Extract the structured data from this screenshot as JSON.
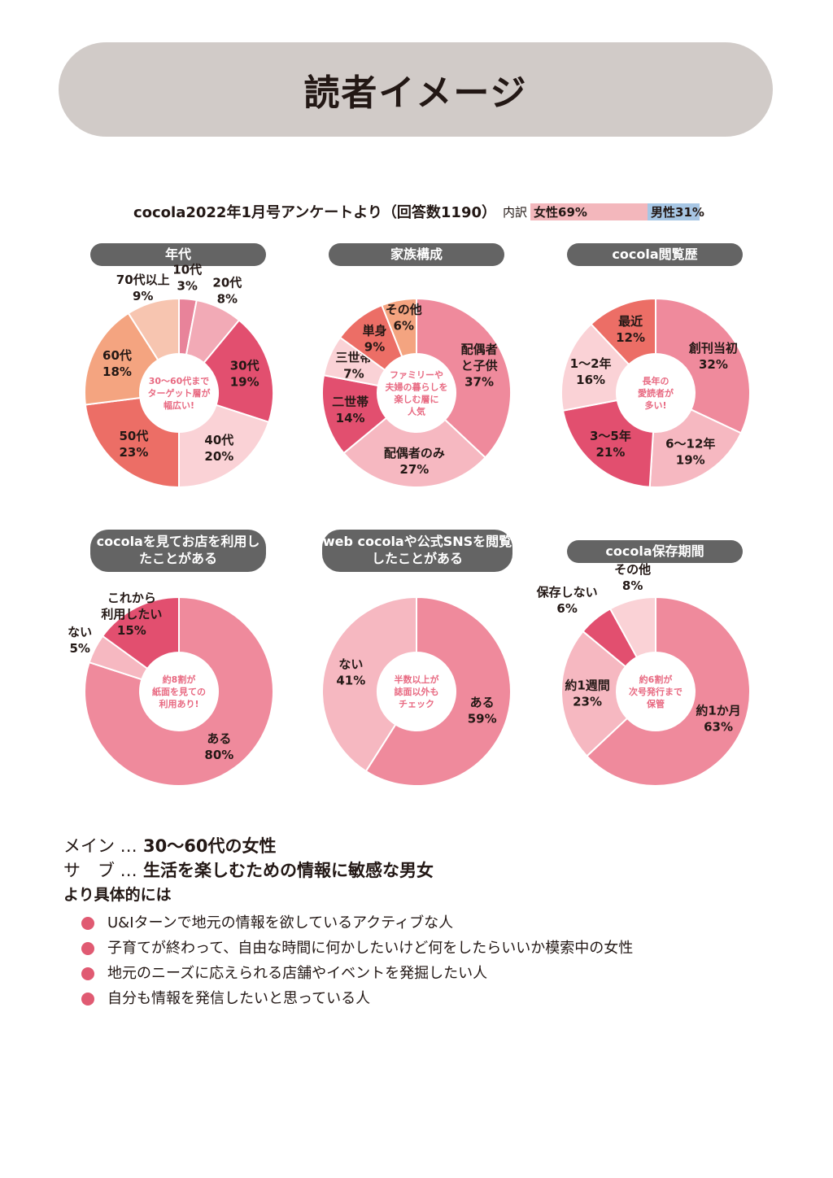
{
  "page": {
    "title": "読者イメージ"
  },
  "survey": {
    "source": "cocola2022年1月号アンケートより（回答数1190）",
    "breakdown_label": "内訳",
    "female_label": "女性69%",
    "male_label": "男性31%",
    "female_share": 0.69,
    "male_share": 0.31
  },
  "chart_data": [
    {
      "type": "pie",
      "title": "年代",
      "center_text": [
        "30～60代まで",
        "ターゲット層が",
        "幅広い!"
      ],
      "center_color": "#e86a82",
      "slices": [
        {
          "label": "10代",
          "value": 3,
          "color": "#e8839a",
          "text_color": "#231815"
        },
        {
          "label": "20代",
          "value": 8,
          "color": "#f2aab6",
          "text_color": "#231815"
        },
        {
          "label": "30代",
          "value": 19,
          "color": "#e24f6f",
          "text_color": "#ffffff"
        },
        {
          "label": "40代",
          "value": 20,
          "color": "#fad2d6",
          "text_color": "#231815"
        },
        {
          "label": "50代",
          "value": 23,
          "color": "#ec6e66",
          "text_color": "#ffffff"
        },
        {
          "label": "60代",
          "value": 18,
          "color": "#f4a480",
          "text_color": "#231815"
        },
        {
          "label": "70代以上",
          "value": 9,
          "color": "#f7c5b0",
          "text_color": "#231815"
        }
      ]
    },
    {
      "type": "pie",
      "title": "家族構成",
      "center_text": [
        "ファミリーや",
        "夫婦の暮らしを",
        "楽しむ層に",
        "人気"
      ],
      "center_color": "#e86a82",
      "slices": [
        {
          "label": "配偶者と子供",
          "value": 37,
          "color": "#ef8a9c",
          "text_color": "#231815"
        },
        {
          "label": "配偶者のみ",
          "value": 27,
          "color": "#f6b8c1",
          "text_color": "#231815"
        },
        {
          "label": "二世帯",
          "value": 14,
          "color": "#e24f6f",
          "text_color": "#ffffff"
        },
        {
          "label": "三世帯",
          "value": 7,
          "color": "#fad2d6",
          "text_color": "#231815"
        },
        {
          "label": "単身",
          "value": 9,
          "color": "#ec6e66",
          "text_color": "#231815"
        },
        {
          "label": "その他",
          "value": 6,
          "color": "#f4a480",
          "text_color": "#231815"
        }
      ]
    },
    {
      "type": "pie",
      "title": "cocola閲覧歴",
      "center_text": [
        "長年の",
        "愛読者が",
        "多い!"
      ],
      "center_color": "#e86a82",
      "slices": [
        {
          "label": "創刊当初",
          "value": 32,
          "color": "#ef8a9c",
          "text_color": "#231815"
        },
        {
          "label": "6～12年",
          "value": 19,
          "color": "#f6b8c1",
          "text_color": "#231815"
        },
        {
          "label": "3～5年",
          "value": 21,
          "color": "#e24f6f",
          "text_color": "#ffffff"
        },
        {
          "label": "1～2年",
          "value": 16,
          "color": "#fad2d6",
          "text_color": "#231815"
        },
        {
          "label": "最近",
          "value": 12,
          "color": "#ec6e66",
          "text_color": "#231815"
        }
      ]
    },
    {
      "type": "pie",
      "title": "cocolaを見てお店を利用したことがある",
      "center_text": [
        "約8割が",
        "紙面を見ての",
        "利用あり!"
      ],
      "center_color": "#e86a82",
      "slices": [
        {
          "label": "ある",
          "value": 80,
          "color": "#ef8a9c",
          "text_color": "#231815"
        },
        {
          "label": "ない",
          "value": 5,
          "color": "#f6b8c1",
          "text_color": "#231815"
        },
        {
          "label": "これから利用したい",
          "value": 15,
          "color": "#e24f6f",
          "text_color": "#231815"
        }
      ]
    },
    {
      "type": "pie",
      "title": "web cocolaや公式SNSを閲覧したことがある",
      "center_text": [
        "半数以上が",
        "誌面以外も",
        "チェック"
      ],
      "center_color": "#e86a82",
      "slices": [
        {
          "label": "ある",
          "value": 59,
          "color": "#ef8a9c",
          "text_color": "#231815"
        },
        {
          "label": "ない",
          "value": 41,
          "color": "#f6b8c1",
          "text_color": "#231815"
        }
      ]
    },
    {
      "type": "pie",
      "title": "cocola保存期間",
      "center_text": [
        "約6割が",
        "次号発行まで",
        "保管"
      ],
      "center_color": "#e86a82",
      "slices": [
        {
          "label": "約1か月",
          "value": 63,
          "color": "#ef8a9c",
          "text_color": "#231815"
        },
        {
          "label": "約1週間",
          "value": 23,
          "color": "#f6b8c1",
          "text_color": "#231815"
        },
        {
          "label": "保存しない",
          "value": 6,
          "color": "#e24f6f",
          "text_color": "#231815"
        },
        {
          "label": "その他",
          "value": 8,
          "color": "#fad2d6",
          "text_color": "#231815"
        }
      ]
    }
  ],
  "summary": {
    "main_key": "メイン …",
    "main_value": "30～60代の女性",
    "sub_key": "サ　ブ …",
    "sub_value": "生活を楽しむための情報に敏感な男女",
    "detail_heading": "より具体的には",
    "bullets": [
      "U&Iターンで地元の情報を欲しているアクティブな人",
      "子育てが終わって、自由な時間に何かしたいけど何をしたらいいか模索中の女性",
      "地元のニーズに応えられる店舗やイベントを発掘したい人",
      "自分も情報を発信したいと思っている人"
    ],
    "bullet_color": "#e05a72"
  }
}
